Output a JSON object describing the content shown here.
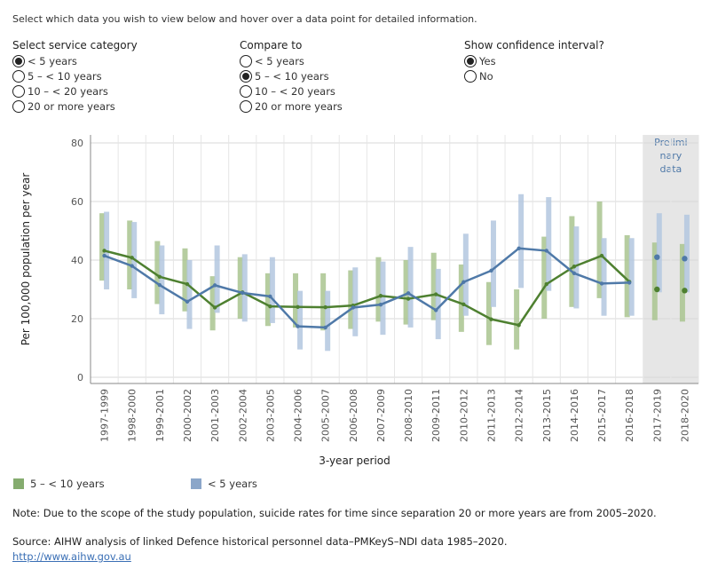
{
  "intro": "Select which data you wish to view below and hover over a data point for detailed information.",
  "controls": {
    "service_category": {
      "title": "Select service category",
      "options": [
        "< 5 years",
        "5 – < 10 years",
        "10 – < 20 years",
        "20 or more years"
      ],
      "selected": 0
    },
    "compare_to": {
      "title": "Compare to",
      "options": [
        "< 5 years",
        "5 – < 10 years",
        "10 – < 20 years",
        "20 or more years"
      ],
      "selected": 1
    },
    "confidence": {
      "title": "Show confidence interval?",
      "options": [
        "Yes",
        "No"
      ],
      "selected": 0
    }
  },
  "legend": [
    {
      "label": "5 – < 10 years",
      "color": "#85ac6f"
    },
    {
      "label": "< 5 years",
      "color": "#8ba6c9"
    }
  ],
  "note": "Note: Due to the scope of the study population, suicide rates for time since separation 20 or more years  are from 2005–2020.",
  "source": "Source: AIHW analysis of linked Defence historical personnel data–PMKeyS–NDI data 1985–2020.",
  "link": "http://www.aihw.gov.au",
  "colors": {
    "green_line": "#4e8030",
    "green_ci": "#a9c48f",
    "blue_line": "#4f79a8",
    "blue_ci": "#b3c7df",
    "prelim_bg": "#e6e6e6",
    "prelim_text": "#4f79a8"
  },
  "chart_data": {
    "type": "line",
    "title": "",
    "xlabel": "3-year period",
    "ylabel": "Per 100,000 population per year",
    "ylim": [
      0,
      80
    ],
    "yticks": [
      0,
      20,
      40,
      60,
      80
    ],
    "grid": true,
    "preliminary_label": [
      "Prelimi",
      "nary",
      "data"
    ],
    "preliminary_categories": [
      "2017-2019",
      "2018-2020"
    ],
    "categories": [
      "1997-1999",
      "1998-2000",
      "1999-2001",
      "2000-2002",
      "2001-2003",
      "2002-2004",
      "2003-2005",
      "2004-2006",
      "2005-2007",
      "2006-2008",
      "2007-2009",
      "2008-2010",
      "2009-2011",
      "2010-2012",
      "2011-2013",
      "2012-2014",
      "2013-2015",
      "2014-2016",
      "2015-2017",
      "2016-2018",
      "2017-2019",
      "2018-2020"
    ],
    "series": [
      {
        "name": "5 – < 10 years",
        "values": [
          43.2,
          40.8,
          34.3,
          31.8,
          23.8,
          29.0,
          24.2,
          24.0,
          23.9,
          24.5,
          27.8,
          26.8,
          28.3,
          24.9,
          19.8,
          17.8,
          31.8,
          37.8,
          41.5,
          32.6,
          30.0,
          29.6
        ],
        "ci_low": [
          33.0,
          30.0,
          25.0,
          22.5,
          16.0,
          20.0,
          17.5,
          17.0,
          16.0,
          16.5,
          19.0,
          18.0,
          19.5,
          15.5,
          11.0,
          9.5,
          20.0,
          24.0,
          27.0,
          20.5,
          19.5,
          19.0
        ],
        "ci_high": [
          56.0,
          53.5,
          46.5,
          44.0,
          34.5,
          41.0,
          35.5,
          35.5,
          35.5,
          36.5,
          41.0,
          40.0,
          42.5,
          38.5,
          32.5,
          30.0,
          48.0,
          55.0,
          60.0,
          48.5,
          46.0,
          45.5
        ],
        "markers_shown_from": 20
      },
      {
        "name": "< 5 years",
        "values": [
          41.5,
          38.0,
          31.5,
          25.8,
          31.4,
          28.8,
          27.6,
          17.4,
          17.0,
          23.8,
          24.8,
          28.7,
          22.9,
          32.5,
          36.4,
          44.0,
          43.2,
          35.5,
          32.0,
          32.3,
          41.0,
          40.5
        ],
        "ci_low": [
          30.0,
          27.0,
          21.5,
          16.5,
          22.0,
          19.0,
          18.5,
          9.5,
          9.0,
          14.0,
          14.5,
          17.0,
          13.0,
          21.0,
          24.0,
          30.5,
          29.5,
          23.5,
          21.0,
          21.0,
          29.0,
          29.0
        ],
        "ci_high": [
          56.5,
          53.0,
          45.0,
          40.0,
          45.0,
          42.0,
          41.0,
          29.5,
          29.5,
          37.5,
          39.5,
          44.5,
          37.0,
          49.0,
          53.5,
          62.5,
          61.5,
          51.5,
          47.5,
          47.5,
          56.0,
          55.5
        ],
        "markers_shown_from": 20
      }
    ]
  }
}
